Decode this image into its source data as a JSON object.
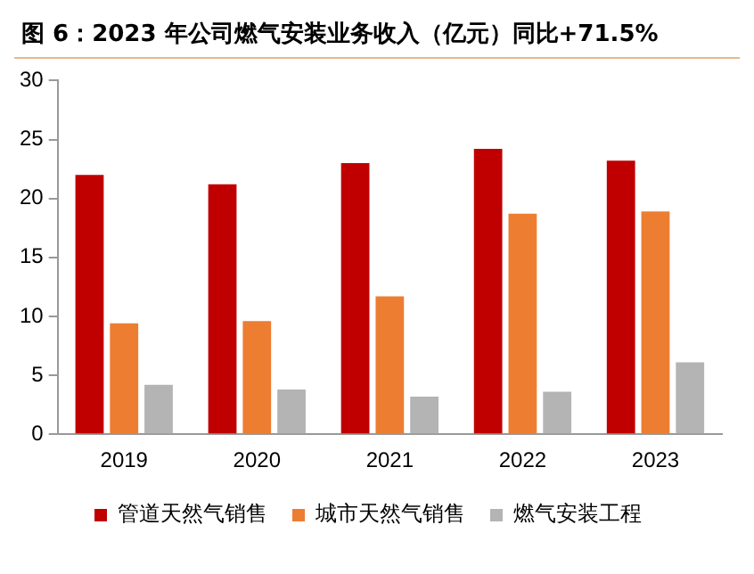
{
  "chart_data": {
    "type": "bar",
    "title": "图 6：2023 年公司燃气安装业务收入（亿元）同比+71.5%",
    "categories": [
      "2019",
      "2020",
      "2021",
      "2022",
      "2023"
    ],
    "series": [
      {
        "name": "管道天然气销售",
        "color": "#c00000",
        "values": [
          22.0,
          21.2,
          23.0,
          24.2,
          23.2
        ]
      },
      {
        "name": "城市天然气销售",
        "color": "#ed7d31",
        "values": [
          9.4,
          9.6,
          11.7,
          18.7,
          18.9
        ]
      },
      {
        "name": "燃气安装工程",
        "color": "#b4b4b4",
        "values": [
          4.2,
          3.8,
          3.2,
          3.6,
          6.1
        ]
      }
    ],
    "ylim": [
      0,
      30
    ],
    "yticks": [
      0,
      5,
      10,
      15,
      20,
      25,
      30
    ],
    "grid": false,
    "legend": "bottom"
  }
}
